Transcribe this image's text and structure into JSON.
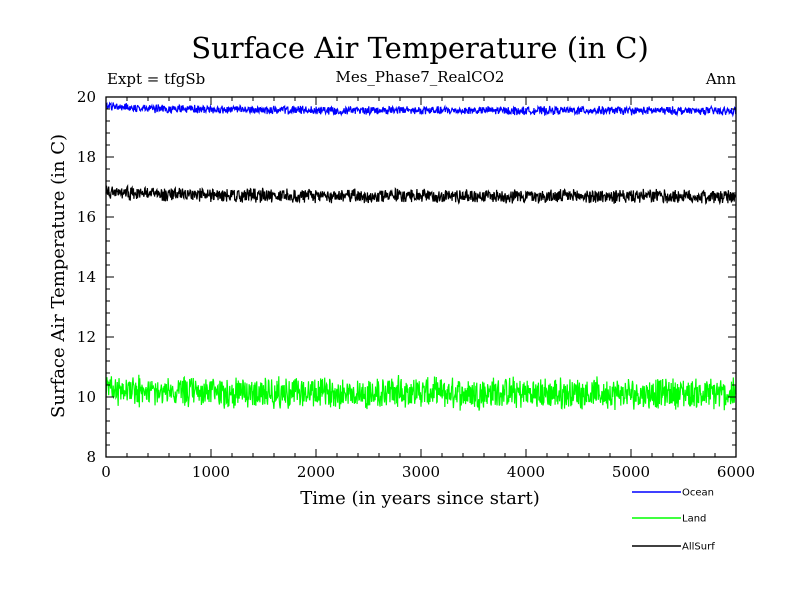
{
  "chart_data": {
    "type": "line",
    "title": "Surface Air Temperature (in C)",
    "header_left": "Expt = tfgSb",
    "header_center": "Mes_Phase7_RealCO2",
    "header_right": "Ann",
    "xlabel": "Time (in years since start)",
    "ylabel": "Surface Air Temperature (in C)",
    "xlim": [
      0,
      6000
    ],
    "ylim": [
      8,
      20
    ],
    "xticks": [
      0,
      1000,
      2000,
      3000,
      4000,
      5000,
      6000
    ],
    "yticks": [
      8,
      10,
      12,
      14,
      16,
      18,
      20
    ],
    "xtick_labels": [
      "0",
      "1000",
      "2000",
      "3000",
      "4000",
      "5000",
      "6000"
    ],
    "ytick_labels": [
      "8",
      "10",
      "12",
      "14",
      "16",
      "18",
      "20"
    ],
    "legend_placement": "bottom-right outside",
    "series": [
      {
        "name": "Ocean",
        "color": "#0000ff",
        "x": [
          0,
          250,
          500,
          750,
          1000,
          1250,
          1500,
          1750,
          2000,
          2250,
          2500,
          2750,
          3000,
          3250,
          3500,
          3750,
          4000,
          4250,
          4500,
          4750,
          5000,
          5250,
          5500,
          5750,
          6000
        ],
        "values": [
          19.7,
          19.65,
          19.6,
          19.6,
          19.58,
          19.57,
          19.57,
          19.56,
          19.56,
          19.55,
          19.56,
          19.56,
          19.55,
          19.55,
          19.55,
          19.55,
          19.54,
          19.55,
          19.55,
          19.55,
          19.54,
          19.55,
          19.54,
          19.54,
          19.52
        ],
        "noise_amplitude": 0.12
      },
      {
        "name": "Land",
        "color": "#00ff00",
        "x": [
          0,
          250,
          500,
          750,
          1000,
          1250,
          1500,
          1750,
          2000,
          2250,
          2500,
          2750,
          3000,
          3250,
          3500,
          3750,
          4000,
          4250,
          4500,
          4750,
          5000,
          5250,
          5500,
          5750,
          6000
        ],
        "values": [
          10.25,
          10.2,
          10.18,
          10.15,
          10.15,
          10.15,
          10.15,
          10.12,
          10.12,
          10.15,
          10.1,
          10.18,
          10.15,
          10.12,
          10.12,
          10.15,
          10.12,
          10.1,
          10.15,
          10.1,
          10.1,
          10.12,
          10.12,
          10.1,
          10.1
        ],
        "noise_amplitude": 0.45
      },
      {
        "name": "AllSurf",
        "color": "#000000",
        "x": [
          0,
          250,
          500,
          750,
          1000,
          1250,
          1500,
          1750,
          2000,
          2250,
          2500,
          2750,
          3000,
          3250,
          3500,
          3750,
          4000,
          4250,
          4500,
          4750,
          5000,
          5250,
          5500,
          5750,
          6000
        ],
        "values": [
          16.85,
          16.8,
          16.75,
          16.75,
          16.72,
          16.72,
          16.72,
          16.7,
          16.7,
          16.7,
          16.7,
          16.72,
          16.7,
          16.7,
          16.7,
          16.7,
          16.7,
          16.68,
          16.7,
          16.68,
          16.68,
          16.7,
          16.68,
          16.68,
          16.65
        ],
        "noise_amplitude": 0.2
      }
    ]
  }
}
